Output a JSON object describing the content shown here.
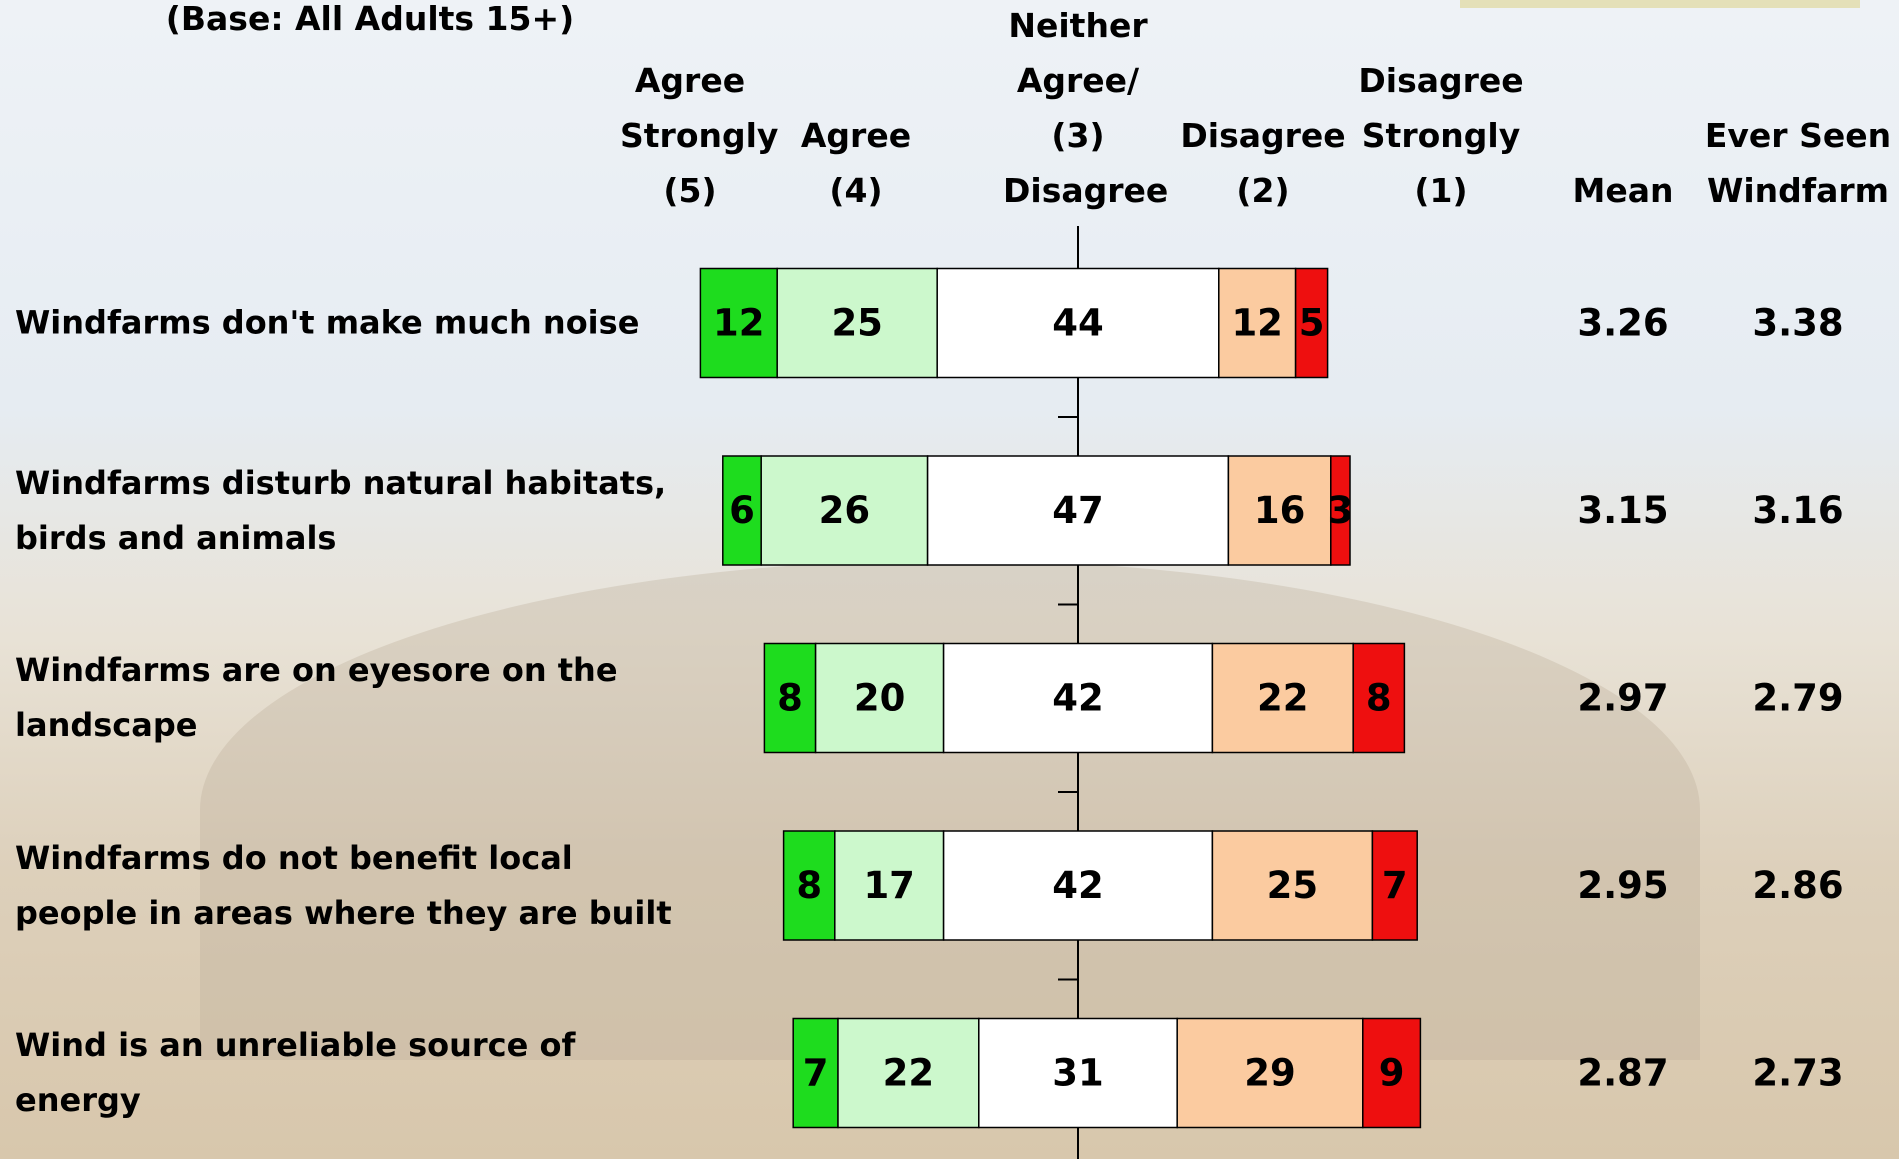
{
  "chart_data": {
    "type": "diverging_bar",
    "subtitle": "(Base: All Adults 15+)",
    "categories": [
      "Windfarms don't make much noise",
      "Windfarms disturb natural habitats, birds and animals",
      "Windfarms are on eyesore on the landscape",
      "Windfarms do not benefit local people in areas where they are built",
      "Wind is an unreliable source of energy"
    ],
    "series": [
      {
        "name": "Agree Strongly (5)",
        "color": "#1edc1e",
        "values": [
          12,
          6,
          8,
          8,
          7
        ]
      },
      {
        "name": "Agree (4)",
        "color": "#ccf8cc",
        "values": [
          25,
          26,
          20,
          17,
          22
        ]
      },
      {
        "name": "Neither Agree/ (3) Disagree",
        "color": "#ffffff",
        "values": [
          44,
          47,
          42,
          42,
          31
        ]
      },
      {
        "name": "Disagree (2)",
        "color": "#fbcba0",
        "values": [
          12,
          16,
          22,
          25,
          29
        ]
      },
      {
        "name": "Disagree Strongly (1)",
        "color": "#ee0f0f",
        "values": [
          5,
          3,
          8,
          7,
          9
        ]
      }
    ],
    "columns": [
      {
        "name": "Mean",
        "values": [
          3.26,
          3.15,
          2.97,
          2.95,
          2.87
        ]
      },
      {
        "name": "Ever Seen Windfarm",
        "values": [
          3.38,
          3.16,
          2.79,
          2.86,
          2.73
        ]
      }
    ]
  }
}
